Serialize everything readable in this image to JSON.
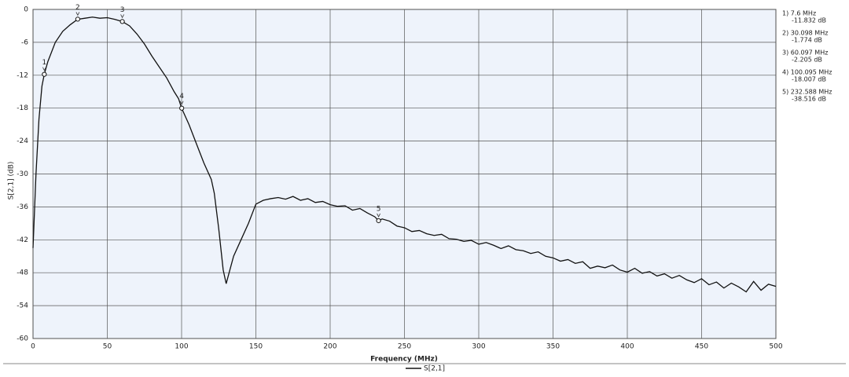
{
  "chart_data": {
    "type": "line",
    "x_label": "Frequency (MHz)",
    "y_label": "S[2,1] (dB)",
    "xlim": [
      0,
      500
    ],
    "xticks": [
      0,
      50,
      100,
      150,
      200,
      250,
      300,
      350,
      400,
      450,
      500
    ],
    "ylim": [
      -60,
      0
    ],
    "yticks": [
      0,
      -6,
      -12,
      -18,
      -24,
      -30,
      -36,
      -42,
      -48,
      -54,
      -60
    ],
    "grid": true,
    "x": [
      0,
      2,
      4,
      6,
      7.6,
      10,
      15,
      20,
      25,
      30,
      35,
      40,
      45,
      50,
      55,
      60,
      65,
      70,
      75,
      80,
      85,
      90,
      95,
      98,
      100,
      105,
      110,
      115,
      120,
      122,
      125,
      127,
      128,
      130,
      132,
      135,
      140,
      145,
      150,
      155,
      160,
      165,
      170,
      175,
      180,
      185,
      190,
      195,
      200,
      205,
      210,
      215,
      220,
      225,
      230,
      232.588,
      235,
      240,
      245,
      250,
      255,
      260,
      265,
      270,
      275,
      280,
      285,
      290,
      295,
      300,
      305,
      310,
      315,
      320,
      325,
      330,
      335,
      340,
      345,
      350,
      355,
      360,
      365,
      370,
      375,
      380,
      385,
      390,
      395,
      400,
      405,
      410,
      415,
      420,
      425,
      430,
      435,
      440,
      445,
      450,
      455,
      460,
      465,
      470,
      475,
      480,
      485,
      490,
      495,
      500
    ],
    "series": [
      {
        "name": "S[2,1]",
        "color": "#111111",
        "values": [
          -43.5,
          -30,
          -20,
          -14,
          -11.8,
          -9.5,
          -6,
          -4,
          -2.8,
          -1.8,
          -1.6,
          -1.4,
          -1.6,
          -1.5,
          -1.8,
          -2.2,
          -3,
          -4.5,
          -6.3,
          -8.5,
          -10.5,
          -12.5,
          -15,
          -16.3,
          -18,
          -21,
          -24.5,
          -28,
          -31,
          -33.5,
          -40,
          -45,
          -47.5,
          -50,
          -48,
          -45,
          -42,
          -39,
          -35.5,
          -34.8,
          -34.5,
          -34.3,
          -34.6,
          -34.1,
          -34.8,
          -34.5,
          -35.2,
          -35,
          -35.6,
          -35.9,
          -35.8,
          -36.6,
          -36.3,
          -37.1,
          -37.8,
          -38.5,
          -38.2,
          -38.6,
          -39.5,
          -39.8,
          -40.5,
          -40.3,
          -40.9,
          -41.2,
          -41,
          -41.8,
          -41.9,
          -42.3,
          -42.1,
          -42.8,
          -42.5,
          -43,
          -43.6,
          -43.1,
          -43.8,
          -44,
          -44.5,
          -44.2,
          -45,
          -45.3,
          -45.9,
          -45.6,
          -46.3,
          -46,
          -47.2,
          -46.8,
          -47.1,
          -46.6,
          -47.5,
          -47.9,
          -47.2,
          -48.1,
          -47.8,
          -48.6,
          -48.2,
          -49,
          -48.5,
          -49.3,
          -49.8,
          -49.1,
          -50.2,
          -49.7,
          -50.8,
          -49.9,
          -50.6,
          -51.5,
          -49.6,
          -51.2,
          -50.1,
          -50.5
        ]
      }
    ],
    "markers": [
      {
        "name": "1",
        "x": 7.6,
        "y": -11.832,
        "label": "1) 7.6 MHz",
        "value_label": "-11.832 dB"
      },
      {
        "name": "2",
        "x": 30.098,
        "y": -1.774,
        "label": "2) 30.098 MHz",
        "value_label": "-1.774 dB"
      },
      {
        "name": "3",
        "x": 60.097,
        "y": -2.205,
        "label": "3) 60.097 MHz",
        "value_label": "-2.205 dB"
      },
      {
        "name": "4",
        "x": 100.095,
        "y": -18.007,
        "label": "4) 100.095 MHz",
        "value_label": "-18.007 dB"
      },
      {
        "name": "5",
        "x": 232.588,
        "y": -38.516,
        "label": "5) 232.588 MHz",
        "value_label": "-38.516 dB"
      }
    ]
  }
}
